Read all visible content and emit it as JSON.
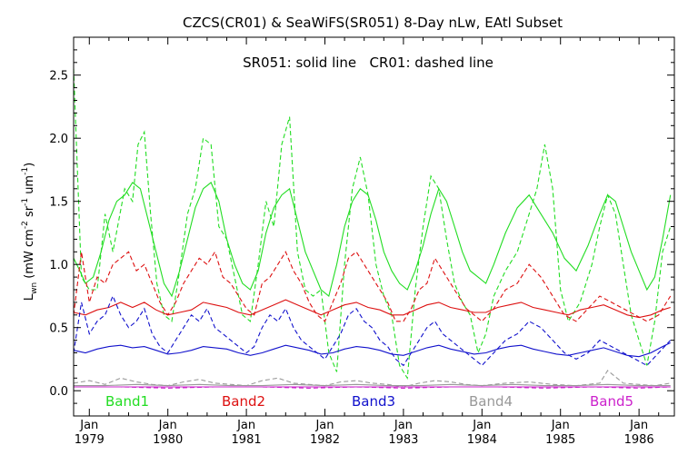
{
  "chart_data": {
    "type": "line",
    "title": "CZCS(CR01) & SeaWiFS(SR051) 8-Day nLw, EAtl Subset",
    "subtitle": "SR051: solid line   CR01: dashed line",
    "ylabel": "L_wn (mW cm^-2 sr^-1 um^-1)",
    "ylabel_parts": {
      "base": "L",
      "sub": "wn",
      "units_pre": "(mW cm",
      "exp1": "-2",
      "units_mid": " sr",
      "exp2": "-1",
      "units_mid2": " um",
      "exp3": "-1",
      "units_post": ")"
    },
    "xlim": [
      1978.8,
      1986.45
    ],
    "ylim": [
      -0.2,
      2.8
    ],
    "y_ticks": [
      0.0,
      0.5,
      1.0,
      1.5,
      2.0,
      2.5
    ],
    "y_tick_labels": [
      "0.0",
      "0.5",
      "1.0",
      "1.5",
      "2.0",
      "2.5"
    ],
    "x_ticks": [
      1979,
      1980,
      1981,
      1982,
      1983,
      1984,
      1985,
      1986
    ],
    "x_tick_labels_month": [
      "Jan",
      "Jan",
      "Jan",
      "Jan",
      "Jan",
      "Jan",
      "Jan",
      "Jan"
    ],
    "x_tick_labels_year": [
      "1979",
      "1980",
      "1981",
      "1982",
      "1983",
      "1984",
      "1985",
      "1986"
    ],
    "grid": false,
    "legend_position": "bottom",
    "legend": [
      {
        "name": "Band1",
        "color": "#22dd22"
      },
      {
        "name": "Band2",
        "color": "#dd1111"
      },
      {
        "name": "Band3",
        "color": "#1111cc"
      },
      {
        "name": "Band4",
        "color": "#999999"
      },
      {
        "name": "Band5",
        "color": "#cc22cc"
      }
    ],
    "series": [
      {
        "name": "Band1",
        "style": "dashed",
        "color": "#22dd22",
        "x": [
          1978.8,
          1978.9,
          1979.0,
          1979.1,
          1979.2,
          1979.3,
          1979.45,
          1979.55,
          1979.62,
          1979.7,
          1979.78,
          1979.86,
          1979.95,
          1980.05,
          1980.15,
          1980.25,
          1980.35,
          1980.45,
          1980.55,
          1980.65,
          1980.75,
          1980.85,
          1980.95,
          1981.05,
          1981.15,
          1981.25,
          1981.35,
          1981.45,
          1981.55,
          1981.65,
          1981.75,
          1981.85,
          1981.95,
          1982.05,
          1982.15,
          1982.25,
          1982.35,
          1982.45,
          1982.55,
          1982.65,
          1982.75,
          1982.85,
          1982.95,
          1983.05,
          1983.15,
          1983.25,
          1983.35,
          1983.45,
          1983.55,
          1983.65,
          1983.75,
          1983.85,
          1983.95,
          1984.05,
          1984.15,
          1984.3,
          1984.45,
          1984.6,
          1984.7,
          1984.8,
          1984.9,
          1985.0,
          1985.1,
          1985.25,
          1985.4,
          1985.5,
          1985.6,
          1985.7,
          1985.8,
          1985.9,
          1986.0,
          1986.1,
          1986.2,
          1986.3,
          1986.4
        ],
        "y": [
          2.55,
          0.9,
          0.8,
          0.8,
          1.4,
          1.1,
          1.6,
          1.5,
          1.95,
          2.05,
          1.4,
          0.85,
          0.6,
          0.55,
          0.95,
          1.4,
          1.6,
          2.0,
          1.95,
          1.3,
          1.2,
          0.9,
          0.6,
          0.55,
          1.0,
          1.5,
          1.3,
          1.95,
          2.17,
          1.1,
          0.8,
          0.75,
          0.8,
          0.3,
          0.15,
          1.0,
          1.6,
          1.85,
          1.55,
          1.0,
          0.75,
          0.6,
          0.2,
          0.1,
          0.8,
          1.3,
          1.7,
          1.6,
          1.2,
          0.85,
          0.7,
          0.6,
          0.3,
          0.45,
          0.75,
          0.95,
          1.1,
          1.4,
          1.6,
          1.95,
          1.6,
          0.8,
          0.55,
          0.7,
          1.0,
          1.3,
          1.55,
          1.4,
          1.0,
          0.6,
          0.4,
          0.2,
          0.55,
          1.1,
          1.3
        ]
      },
      {
        "name": "Band1",
        "style": "solid",
        "color": "#22dd22",
        "x": [
          1978.8,
          1978.88,
          1978.95,
          1979.05,
          1979.15,
          1979.25,
          1979.35,
          1979.45,
          1979.55,
          1979.65,
          1979.75,
          1979.85,
          1979.95,
          1980.05,
          1980.15,
          1980.25,
          1980.35,
          1980.45,
          1980.55,
          1980.65,
          1980.75,
          1980.85,
          1980.95,
          1981.05,
          1981.15,
          1981.25,
          1981.35,
          1981.45,
          1981.55,
          1981.65,
          1981.75,
          1981.85,
          1981.95,
          1982.05,
          1982.15,
          1982.25,
          1982.35,
          1982.45,
          1982.55,
          1982.65,
          1982.75,
          1982.85,
          1982.95,
          1983.05,
          1983.15,
          1983.25,
          1983.35,
          1983.45,
          1983.55,
          1983.65,
          1983.75,
          1983.85,
          1983.95,
          1984.05,
          1984.15,
          1984.3,
          1984.45,
          1984.6,
          1984.75,
          1984.9,
          1985.05,
          1985.2,
          1985.35,
          1985.5,
          1985.6,
          1985.7,
          1985.8,
          1985.9,
          1986.0,
          1986.1,
          1986.2,
          1986.3,
          1986.4
        ],
        "y": [
          1.05,
          0.95,
          0.85,
          0.9,
          1.1,
          1.35,
          1.5,
          1.55,
          1.65,
          1.6,
          1.35,
          1.1,
          0.85,
          0.75,
          0.95,
          1.2,
          1.45,
          1.6,
          1.65,
          1.5,
          1.2,
          1.0,
          0.85,
          0.8,
          0.95,
          1.25,
          1.45,
          1.55,
          1.6,
          1.35,
          1.1,
          0.95,
          0.8,
          0.75,
          1.0,
          1.3,
          1.5,
          1.6,
          1.55,
          1.35,
          1.1,
          0.95,
          0.85,
          0.8,
          0.95,
          1.15,
          1.4,
          1.6,
          1.5,
          1.3,
          1.1,
          0.95,
          0.9,
          0.85,
          1.0,
          1.25,
          1.45,
          1.55,
          1.4,
          1.25,
          1.05,
          0.95,
          1.15,
          1.4,
          1.55,
          1.5,
          1.3,
          1.1,
          0.95,
          0.8,
          0.9,
          1.2,
          1.55
        ]
      },
      {
        "name": "Band2",
        "style": "dashed",
        "color": "#dd1111",
        "x": [
          1978.8,
          1978.9,
          1979.0,
          1979.1,
          1979.2,
          1979.3,
          1979.4,
          1979.5,
          1979.6,
          1979.7,
          1979.8,
          1979.9,
          1980.0,
          1980.1,
          1980.2,
          1980.3,
          1980.4,
          1980.5,
          1980.6,
          1980.7,
          1980.8,
          1980.9,
          1981.0,
          1981.1,
          1981.2,
          1981.3,
          1981.4,
          1981.5,
          1981.6,
          1981.7,
          1981.8,
          1981.9,
          1982.0,
          1982.1,
          1982.2,
          1982.3,
          1982.4,
          1982.5,
          1982.6,
          1982.7,
          1982.8,
          1982.9,
          1983.0,
          1983.1,
          1983.2,
          1983.3,
          1983.4,
          1983.5,
          1983.6,
          1983.7,
          1983.8,
          1983.9,
          1984.0,
          1984.15,
          1984.3,
          1984.45,
          1984.6,
          1984.75,
          1984.9,
          1985.05,
          1985.2,
          1985.35,
          1985.5,
          1985.65,
          1985.8,
          1985.95,
          1986.1,
          1986.25,
          1986.4
        ],
        "y": [
          0.6,
          1.1,
          0.7,
          0.9,
          0.85,
          1.0,
          1.05,
          1.1,
          0.95,
          1.0,
          0.85,
          0.7,
          0.6,
          0.7,
          0.85,
          0.95,
          1.05,
          1.0,
          1.1,
          0.9,
          0.85,
          0.75,
          0.65,
          0.6,
          0.85,
          0.9,
          1.0,
          1.1,
          0.95,
          0.85,
          0.7,
          0.6,
          0.55,
          0.7,
          0.85,
          1.05,
          1.1,
          1.0,
          0.9,
          0.8,
          0.7,
          0.55,
          0.55,
          0.65,
          0.8,
          0.85,
          1.05,
          0.95,
          0.85,
          0.75,
          0.65,
          0.6,
          0.55,
          0.65,
          0.8,
          0.85,
          1.0,
          0.9,
          0.75,
          0.6,
          0.55,
          0.65,
          0.75,
          0.7,
          0.65,
          0.6,
          0.55,
          0.6,
          0.75
        ]
      },
      {
        "name": "Band2",
        "style": "solid",
        "color": "#dd1111",
        "x": [
          1978.8,
          1978.95,
          1979.1,
          1979.25,
          1979.4,
          1979.55,
          1979.7,
          1979.85,
          1980.0,
          1980.15,
          1980.3,
          1980.45,
          1980.6,
          1980.75,
          1980.9,
          1981.05,
          1981.2,
          1981.35,
          1981.5,
          1981.65,
          1981.8,
          1981.95,
          1982.1,
          1982.25,
          1982.4,
          1982.55,
          1982.7,
          1982.85,
          1983.0,
          1983.15,
          1983.3,
          1983.45,
          1983.6,
          1983.75,
          1983.9,
          1984.05,
          1984.2,
          1984.35,
          1984.5,
          1984.65,
          1984.8,
          1984.95,
          1985.1,
          1985.25,
          1985.4,
          1985.55,
          1985.7,
          1985.85,
          1986.0,
          1986.15,
          1986.3,
          1986.4
        ],
        "y": [
          0.62,
          0.6,
          0.64,
          0.66,
          0.7,
          0.66,
          0.7,
          0.64,
          0.6,
          0.62,
          0.64,
          0.7,
          0.68,
          0.66,
          0.62,
          0.6,
          0.64,
          0.68,
          0.72,
          0.68,
          0.64,
          0.6,
          0.64,
          0.68,
          0.7,
          0.66,
          0.64,
          0.6,
          0.6,
          0.64,
          0.68,
          0.7,
          0.66,
          0.64,
          0.62,
          0.62,
          0.66,
          0.68,
          0.7,
          0.66,
          0.64,
          0.62,
          0.6,
          0.64,
          0.66,
          0.68,
          0.64,
          0.6,
          0.58,
          0.6,
          0.64,
          0.66
        ]
      },
      {
        "name": "Band3",
        "style": "dashed",
        "color": "#1111cc",
        "x": [
          1978.8,
          1978.9,
          1979.0,
          1979.1,
          1979.2,
          1979.3,
          1979.4,
          1979.5,
          1979.6,
          1979.7,
          1979.8,
          1979.9,
          1980.0,
          1980.1,
          1980.2,
          1980.3,
          1980.4,
          1980.5,
          1980.6,
          1980.7,
          1980.8,
          1980.9,
          1981.0,
          1981.1,
          1981.2,
          1981.3,
          1981.4,
          1981.5,
          1981.6,
          1981.7,
          1981.8,
          1981.9,
          1982.0,
          1982.1,
          1982.2,
          1982.3,
          1982.4,
          1982.5,
          1982.6,
          1982.7,
          1982.8,
          1982.9,
          1983.0,
          1983.1,
          1983.2,
          1983.3,
          1983.4,
          1983.5,
          1983.6,
          1983.7,
          1983.8,
          1983.9,
          1984.0,
          1984.15,
          1984.3,
          1984.45,
          1984.6,
          1984.75,
          1984.9,
          1985.05,
          1985.2,
          1985.35,
          1985.5,
          1985.65,
          1985.8,
          1985.95,
          1986.1,
          1986.25,
          1986.4
        ],
        "y": [
          0.3,
          0.7,
          0.45,
          0.55,
          0.6,
          0.75,
          0.6,
          0.5,
          0.55,
          0.65,
          0.45,
          0.35,
          0.3,
          0.4,
          0.5,
          0.6,
          0.55,
          0.65,
          0.5,
          0.45,
          0.4,
          0.35,
          0.3,
          0.35,
          0.5,
          0.6,
          0.55,
          0.65,
          0.5,
          0.4,
          0.35,
          0.3,
          0.25,
          0.35,
          0.45,
          0.6,
          0.65,
          0.55,
          0.5,
          0.4,
          0.35,
          0.25,
          0.2,
          0.3,
          0.4,
          0.5,
          0.55,
          0.45,
          0.4,
          0.35,
          0.3,
          0.25,
          0.2,
          0.3,
          0.4,
          0.45,
          0.55,
          0.5,
          0.4,
          0.3,
          0.25,
          0.3,
          0.4,
          0.35,
          0.3,
          0.25,
          0.2,
          0.3,
          0.4
        ]
      },
      {
        "name": "Band3",
        "style": "solid",
        "color": "#1111cc",
        "x": [
          1978.8,
          1978.95,
          1979.1,
          1979.25,
          1979.4,
          1979.55,
          1979.7,
          1979.85,
          1980.0,
          1980.15,
          1980.3,
          1980.45,
          1980.6,
          1980.75,
          1980.9,
          1981.05,
          1981.2,
          1981.35,
          1981.5,
          1981.65,
          1981.8,
          1981.95,
          1982.1,
          1982.25,
          1982.4,
          1982.55,
          1982.7,
          1982.85,
          1983.0,
          1983.15,
          1983.3,
          1983.45,
          1983.6,
          1983.75,
          1983.9,
          1984.05,
          1984.2,
          1984.35,
          1984.5,
          1984.65,
          1984.8,
          1984.95,
          1985.1,
          1985.25,
          1985.4,
          1985.55,
          1985.7,
          1985.85,
          1986.0,
          1986.15,
          1986.3,
          1986.4
        ],
        "y": [
          0.32,
          0.3,
          0.33,
          0.35,
          0.36,
          0.34,
          0.35,
          0.32,
          0.29,
          0.3,
          0.32,
          0.35,
          0.34,
          0.33,
          0.3,
          0.28,
          0.3,
          0.33,
          0.36,
          0.34,
          0.32,
          0.29,
          0.3,
          0.33,
          0.35,
          0.34,
          0.32,
          0.29,
          0.28,
          0.31,
          0.34,
          0.36,
          0.33,
          0.31,
          0.29,
          0.3,
          0.33,
          0.35,
          0.36,
          0.33,
          0.31,
          0.29,
          0.28,
          0.3,
          0.32,
          0.34,
          0.31,
          0.28,
          0.27,
          0.3,
          0.35,
          0.38
        ]
      },
      {
        "name": "Band4",
        "style": "dashed",
        "color": "#999999",
        "x": [
          1978.8,
          1979.0,
          1979.2,
          1979.4,
          1979.6,
          1979.8,
          1980.0,
          1980.2,
          1980.4,
          1980.6,
          1980.8,
          1981.0,
          1981.2,
          1981.4,
          1981.6,
          1981.8,
          1982.0,
          1982.2,
          1982.4,
          1982.6,
          1982.8,
          1983.0,
          1983.2,
          1983.4,
          1983.6,
          1983.8,
          1984.0,
          1984.3,
          1984.6,
          1984.9,
          1985.2,
          1985.5,
          1985.6,
          1985.8,
          1986.0,
          1986.2,
          1986.4
        ],
        "y": [
          0.06,
          0.08,
          0.05,
          0.1,
          0.07,
          0.05,
          0.04,
          0.07,
          0.09,
          0.06,
          0.05,
          0.04,
          0.08,
          0.1,
          0.06,
          0.05,
          0.04,
          0.07,
          0.08,
          0.06,
          0.05,
          0.03,
          0.06,
          0.08,
          0.07,
          0.05,
          0.04,
          0.06,
          0.07,
          0.05,
          0.04,
          0.06,
          0.16,
          0.06,
          0.05,
          0.04,
          0.06
        ]
      },
      {
        "name": "Band4",
        "style": "solid",
        "color": "#999999",
        "x": [
          1978.8,
          1979.2,
          1979.6,
          1980.0,
          1980.4,
          1980.8,
          1981.2,
          1981.6,
          1982.0,
          1982.4,
          1982.8,
          1983.2,
          1983.6,
          1984.0,
          1984.4,
          1984.8,
          1985.2,
          1985.6,
          1986.0,
          1986.4
        ],
        "y": [
          0.04,
          0.04,
          0.05,
          0.04,
          0.05,
          0.04,
          0.04,
          0.05,
          0.04,
          0.05,
          0.04,
          0.04,
          0.05,
          0.04,
          0.05,
          0.04,
          0.04,
          0.05,
          0.04,
          0.04
        ]
      },
      {
        "name": "Band5",
        "style": "dashed",
        "color": "#cc22cc",
        "x": [
          1978.8,
          1979.4,
          1980.0,
          1980.6,
          1981.2,
          1981.8,
          1982.4,
          1983.0,
          1983.6,
          1984.2,
          1984.8,
          1985.4,
          1986.0,
          1986.4
        ],
        "y": [
          0.03,
          0.03,
          0.02,
          0.03,
          0.03,
          0.02,
          0.03,
          0.02,
          0.03,
          0.03,
          0.02,
          0.03,
          0.02,
          0.03
        ]
      },
      {
        "name": "Band5",
        "style": "solid",
        "color": "#cc22cc",
        "x": [
          1978.8,
          1979.6,
          1980.4,
          1981.2,
          1982.0,
          1982.8,
          1983.6,
          1984.4,
          1985.2,
          1986.0,
          1986.4
        ],
        "y": [
          0.03,
          0.03,
          0.03,
          0.03,
          0.03,
          0.03,
          0.03,
          0.03,
          0.03,
          0.03,
          0.03
        ]
      }
    ]
  }
}
